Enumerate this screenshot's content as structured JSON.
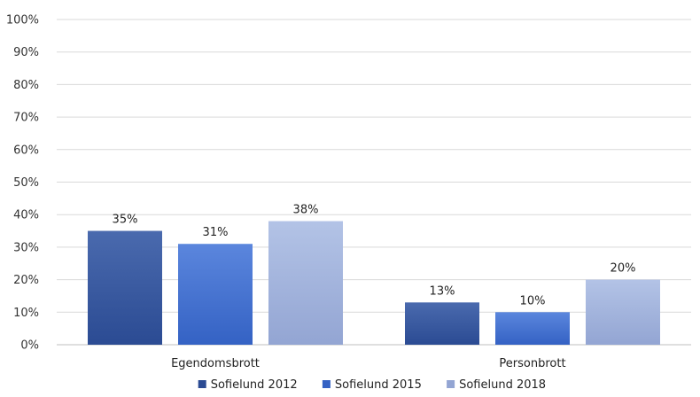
{
  "chart_data": {
    "type": "bar",
    "categories": [
      "Egendomsbrott",
      "Personbrott"
    ],
    "series": [
      {
        "name": "Sofielund 2012",
        "values": [
          35,
          13
        ],
        "labels": [
          "35%",
          "13%"
        ],
        "color_top": "#4a6aae",
        "color_bottom": "#2b4b93"
      },
      {
        "name": "Sofielund 2015",
        "values": [
          31,
          10
        ],
        "labels": [
          "31%",
          "10%"
        ],
        "color_top": "#5b86dd",
        "color_bottom": "#3462c4"
      },
      {
        "name": "Sofielund 2018",
        "values": [
          38,
          20
        ],
        "labels": [
          "38%",
          "20%"
        ],
        "color_top": "#b3c3e6",
        "color_bottom": "#93a5d3"
      }
    ],
    "yticks": [
      0,
      10,
      20,
      30,
      40,
      50,
      60,
      70,
      80,
      90,
      100
    ],
    "ytick_labels": [
      "0%",
      "10%",
      "20%",
      "30%",
      "40%",
      "50%",
      "60%",
      "70%",
      "80%",
      "90%",
      "100%"
    ],
    "ylim": [
      0,
      100
    ],
    "grid": true,
    "legend_position": "bottom"
  }
}
